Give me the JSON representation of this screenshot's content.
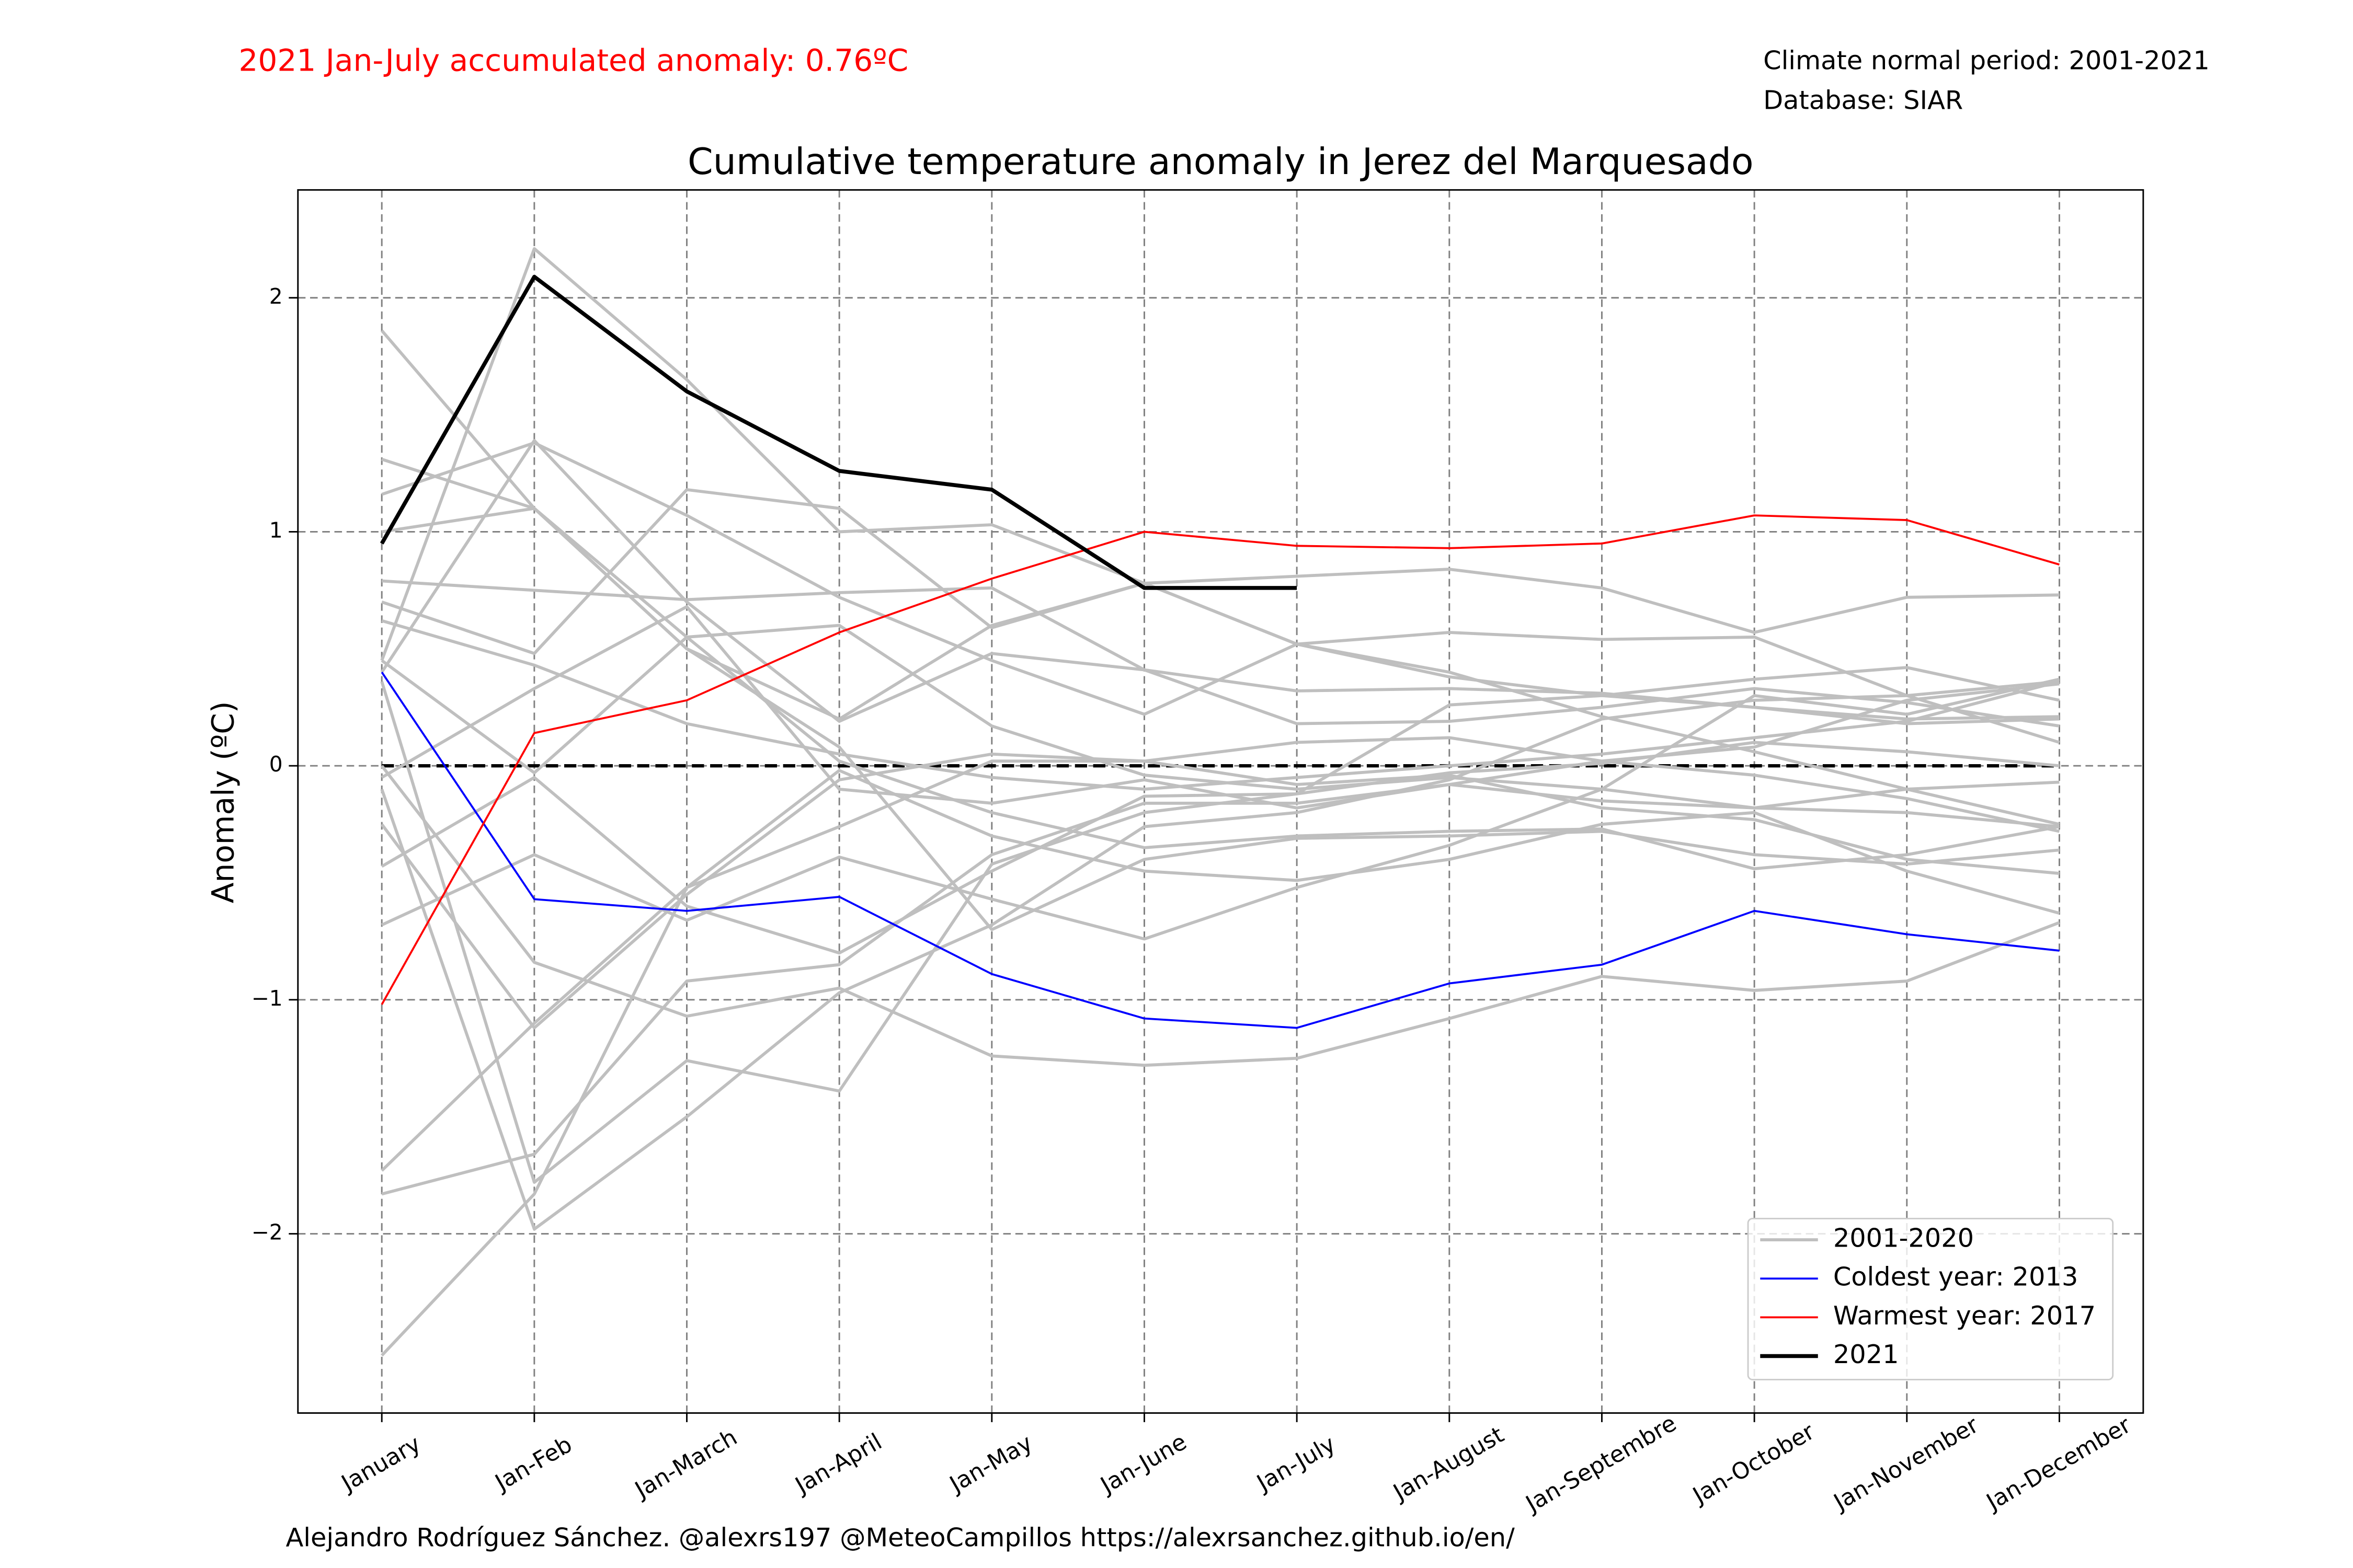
{
  "chart_data": {
    "type": "line",
    "title": "Cumulative temperature anomaly in Jerez del Marquesado",
    "ylabel": "Anomaly (ºC)",
    "annotation": "2021 Jan-July accumulated anomaly: 0.76ºC",
    "info": [
      "Climate normal period: 2001-2021",
      "Database: SIAR"
    ],
    "credit": "Alejandro Rodríguez Sánchez. @alexrs197 @MeteoCampillos   https://alexrsanchez.github.io/en/",
    "categories": [
      "January",
      "Jan-Feb",
      "Jan-March",
      "Jan-April",
      "Jan-May",
      "Jan-June",
      "Jan-July",
      "Jan-August",
      "Jan-Septembre",
      "Jan-October",
      "Jan-November",
      "Jan-December"
    ],
    "ylim": [
      -2.766,
      2.461
    ],
    "yticks": [
      {
        "value": -2,
        "label": "−2"
      },
      {
        "value": -1,
        "label": "−1"
      },
      0,
      1,
      2
    ],
    "grid": true,
    "hline": 0,
    "legend": "lower right",
    "series": [
      {
        "name": "2001-2020",
        "color": "#bfbfbf",
        "width": 2,
        "lines": [
          [
            1.86,
            1.1,
            0.55,
            0.02,
            -0.2,
            -0.35,
            -0.3,
            -0.28,
            -0.27,
            -0.44,
            -0.38,
            -0.26
          ],
          [
            1.31,
            1.1,
            0.5,
            0.2,
            0.6,
            0.78,
            0.81,
            0.84,
            0.76,
            0.57,
            0.72,
            0.73
          ],
          [
            1.16,
            1.38,
            1.07,
            0.72,
            0.45,
            0.22,
            0.52,
            0.57,
            0.54,
            0.55,
            0.3,
            0.1
          ],
          [
            0.79,
            0.75,
            0.71,
            0.74,
            0.76,
            0.41,
            0.32,
            0.33,
            0.31,
            0.25,
            0.2,
            0.21
          ],
          [
            0.7,
            0.48,
            1.18,
            1.1,
            0.59,
            0.78,
            0.52,
            0.4,
            0.21,
            0.06,
            -0.1,
            -0.25
          ],
          [
            0.62,
            0.43,
            0.18,
            0.05,
            -0.05,
            -0.1,
            -0.05,
            0.0,
            0.05,
            0.12,
            0.19,
            0.36
          ],
          [
            0.45,
            2.21,
            1.65,
            1.0,
            1.03,
            0.78,
            0.52,
            0.38,
            0.3,
            0.37,
            0.42,
            0.28
          ],
          [
            0.4,
            1.39,
            0.7,
            0.19,
            0.48,
            0.41,
            0.18,
            0.19,
            0.25,
            0.33,
            0.27,
            0.17
          ],
          [
            -0.05,
            0.33,
            0.68,
            -0.1,
            -0.16,
            -0.06,
            -0.18,
            -0.08,
            -0.15,
            -0.18,
            -0.2,
            -0.26
          ],
          [
            -0.25,
            -1.12,
            -0.55,
            -0.06,
            0.05,
            0.02,
            0.1,
            0.12,
            0.02,
            -0.04,
            -0.14,
            -0.28
          ],
          [
            -0.43,
            -0.05,
            -0.6,
            -0.8,
            -0.45,
            -0.13,
            -0.12,
            -0.03,
            0.01,
            0.1,
            0.06,
            0.0
          ],
          [
            -0.68,
            -0.38,
            -0.66,
            -0.39,
            -0.57,
            -0.74,
            -0.52,
            -0.34,
            -0.1,
            0.3,
            0.22,
            0.37
          ],
          [
            -1.73,
            -1.1,
            -0.52,
            -0.26,
            0.02,
            0.02,
            -0.08,
            -0.04,
            -0.18,
            -0.23,
            -0.4,
            -0.46
          ],
          [
            -1.83,
            -1.66,
            -0.92,
            -0.85,
            -0.38,
            -0.16,
            -0.16,
            -0.08,
            0.02,
            0.08,
            0.28,
            0.35
          ],
          [
            -2.52,
            -1.83,
            -0.52,
            -0.02,
            -0.3,
            -0.45,
            -0.49,
            -0.4,
            -0.25,
            -0.2,
            -0.45,
            -0.63
          ],
          [
            0.0,
            -0.84,
            -1.07,
            -0.95,
            -1.24,
            -1.28,
            -1.25,
            -1.08,
            -0.9,
            -0.96,
            -0.92,
            -0.67
          ],
          [
            -0.1,
            -1.98,
            -1.5,
            -0.97,
            -0.68,
            -0.26,
            -0.2,
            -0.06,
            0.2,
            0.28,
            0.3,
            0.36
          ],
          [
            0.36,
            -1.78,
            -1.26,
            -1.39,
            -0.42,
            -0.2,
            -0.12,
            0.26,
            0.3,
            0.25,
            0.18,
            0.2
          ],
          [
            0.45,
            -0.03,
            0.55,
            0.6,
            0.17,
            -0.04,
            -0.1,
            -0.05,
            -0.1,
            -0.18,
            -0.1,
            -0.07
          ],
          [
            1.0,
            1.1,
            0.5,
            0.08,
            -0.7,
            -0.4,
            -0.31,
            -0.3,
            -0.28,
            -0.38,
            -0.42,
            -0.36
          ]
        ]
      },
      {
        "name": "Coldest year: 2013",
        "color": "#0000ff",
        "width": 1.3,
        "values": [
          0.4,
          -0.57,
          -0.62,
          -0.56,
          -0.89,
          -1.08,
          -1.12,
          -0.93,
          -0.85,
          -0.62,
          -0.72,
          -0.79
        ]
      },
      {
        "name": "Warmest year: 2017",
        "color": "#ff0000",
        "width": 1.3,
        "values": [
          -1.02,
          0.14,
          0.28,
          0.57,
          0.8,
          1.0,
          0.94,
          0.93,
          0.95,
          1.07,
          1.05,
          0.86
        ]
      },
      {
        "name": "2021",
        "color": "#000000",
        "width": 2.6,
        "values": [
          0.95,
          2.09,
          1.6,
          1.26,
          1.18,
          0.76,
          0.76,
          null,
          null,
          null,
          null,
          null
        ]
      }
    ]
  }
}
